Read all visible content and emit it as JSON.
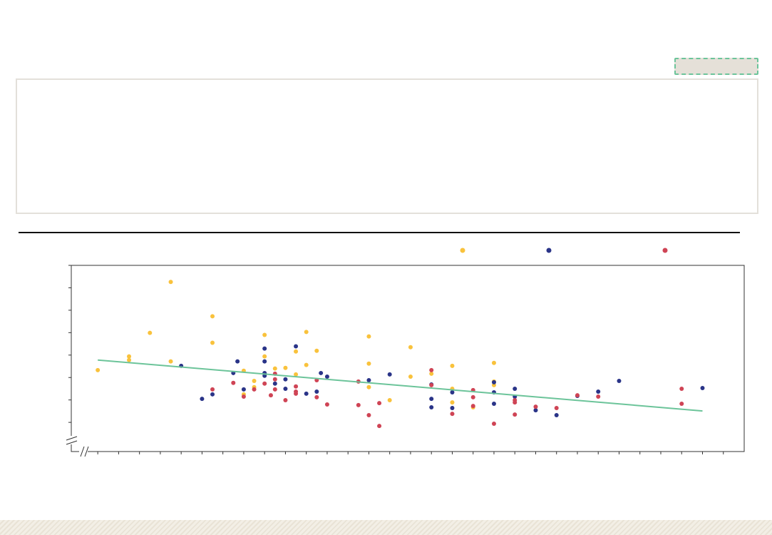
{
  "chart_data": {
    "type": "scatter",
    "xlim": [
      -0.27,
      32
    ],
    "xticks": [
      1,
      2,
      3,
      4,
      5,
      6,
      7,
      8,
      9,
      10,
      11,
      12,
      13,
      14,
      15,
      16,
      17,
      18,
      19,
      20,
      21,
      22,
      23,
      24,
      25,
      26,
      27,
      28,
      29,
      30,
      31
    ],
    "ylim": [
      -0.3,
      8
    ],
    "yticks": [
      1,
      2,
      3,
      4,
      5,
      6,
      7,
      8
    ],
    "series": [
      {
        "color": "#f9c23c",
        "x": [
          1,
          2.5,
          2.5,
          3.5,
          4.5,
          4.5,
          6.5,
          6.5,
          8,
          8,
          8.5,
          8.5,
          9,
          9,
          9.5,
          10,
          10.5,
          10.5,
          11,
          11,
          11.5,
          14,
          14,
          14,
          15,
          16,
          16,
          17,
          18,
          18,
          18,
          19,
          20,
          20,
          20
        ],
        "values": [
          3.33,
          3.94,
          3.78,
          4.99,
          7.26,
          3.72,
          5.73,
          4.55,
          3.3,
          2.25,
          2.85,
          2.57,
          4.9,
          3.94,
          3.4,
          3.43,
          4.16,
          3.14,
          5.03,
          3.56,
          4.19,
          4.83,
          3.62,
          2.57,
          1.99,
          4.35,
          3.04,
          3.17,
          3.52,
          2.5,
          1.89,
          1.67,
          3.65,
          2.82,
          2.66
        ]
      },
      {
        "color": "#2a3488",
        "x": [
          5,
          6,
          6.5,
          7.5,
          7.7,
          8,
          9,
          9,
          9,
          9,
          9.5,
          10,
          10,
          10.5,
          11,
          11.5,
          11.7,
          12,
          14,
          15,
          17,
          17,
          17,
          18,
          18,
          20,
          20,
          20,
          21,
          21,
          22,
          23,
          24,
          25,
          26,
          30
        ],
        "values": [
          3.52,
          2.05,
          2.25,
          3.2,
          3.72,
          2.47,
          4.29,
          3.72,
          3.2,
          3.08,
          2.73,
          2.92,
          2.5,
          4.39,
          2.28,
          2.37,
          3.2,
          3.04,
          2.88,
          3.14,
          2.69,
          2.05,
          1.67,
          2.34,
          1.64,
          2.79,
          2.34,
          1.83,
          2.5,
          2.15,
          1.54,
          1.32,
          2.18,
          2.37,
          2.85,
          2.53
        ]
      },
      {
        "color": "#cf4455",
        "x": [
          6.5,
          7.5,
          8,
          8.5,
          9,
          9.3,
          9.5,
          9.5,
          9.5,
          10,
          10.5,
          10.5,
          10.5,
          11.5,
          11.5,
          12,
          13.5,
          13.5,
          14,
          14.5,
          14.5,
          17,
          17,
          18,
          19,
          19,
          19,
          20,
          21,
          21,
          21,
          22,
          23,
          24,
          25,
          29,
          29
        ],
        "values": [
          2.47,
          2.76,
          2.15,
          2.47,
          2.73,
          2.21,
          3.17,
          2.92,
          2.47,
          1.99,
          2.6,
          2.37,
          2.28,
          2.88,
          2.12,
          1.8,
          1.77,
          2.82,
          1.32,
          1.86,
          0.84,
          3.33,
          2.66,
          1.38,
          2.44,
          2.12,
          1.73,
          0.94,
          1.99,
          1.89,
          1.35,
          1.7,
          1.64,
          2.21,
          2.15,
          2.5,
          1.83
        ]
      }
    ],
    "trendline": {
      "color": "#6cc49a",
      "x": [
        1,
        30
      ],
      "values": [
        3.78,
        1.51
      ]
    }
  }
}
